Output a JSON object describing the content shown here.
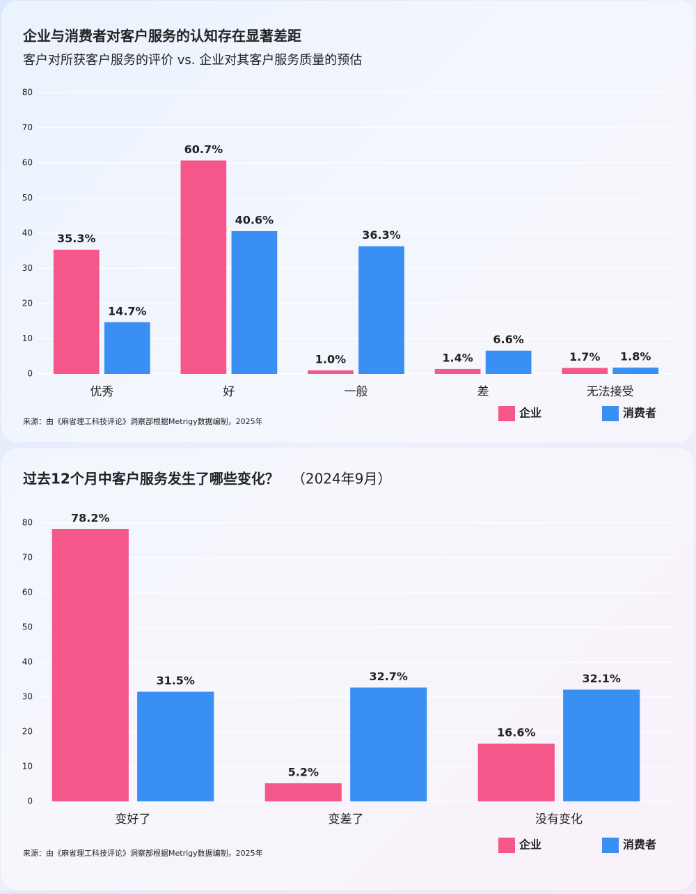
{
  "chart_data": [
    {
      "type": "bar",
      "title": "企业与消费者对客户服务的认知存在显著差距",
      "subtitle": "客户对所获客户服务的评价 vs. 企业对其客户服务质量的预估",
      "categories": [
        "优秀",
        "好",
        "一般",
        "差",
        "无法接受"
      ],
      "series": [
        {
          "name": "企业",
          "color": "#f5578a",
          "values": [
            35.3,
            60.7,
            1.0,
            1.4,
            1.7
          ],
          "value_labels": [
            "35.3%",
            "60.7%",
            "1.0%",
            "1.4%",
            "1.7%"
          ]
        },
        {
          "name": "消费者",
          "color": "#3a8ff5",
          "values": [
            14.7,
            40.6,
            36.3,
            6.6,
            1.8
          ],
          "value_labels": [
            "14.7%",
            "40.6%",
            "36.3%",
            "6.6%",
            "1.8%"
          ]
        }
      ],
      "ylim": [
        0,
        80
      ],
      "yticks": [
        0,
        10,
        20,
        30,
        40,
        50,
        60,
        70,
        80
      ],
      "grid": true,
      "legend": "bottom-right",
      "source": "来源：由《麻省理工科技评论》洞察部根据Metrigy数据编制，2025年"
    },
    {
      "type": "bar",
      "title": "过去12个月中客户服务发生了哪些变化？",
      "subtitle": "（2024年9月）",
      "categories": [
        "变好了",
        "变差了",
        "没有变化"
      ],
      "series": [
        {
          "name": "企业",
          "color": "#f5578a",
          "values": [
            78.2,
            5.2,
            16.6
          ],
          "value_labels": [
            "78.2%",
            "5.2%",
            "16.6%"
          ]
        },
        {
          "name": "消费者",
          "color": "#3a8ff5",
          "values": [
            31.5,
            32.7,
            32.1
          ],
          "value_labels": [
            "31.5%",
            "32.7%",
            "32.1%"
          ]
        }
      ],
      "ylim": [
        0,
        80
      ],
      "yticks": [
        0,
        10,
        20,
        30,
        40,
        50,
        60,
        70,
        80
      ],
      "grid": true,
      "legend": "bottom-right",
      "source": "来源：由《麻省理工科技评论》洞察部根据Metrigy数据编制，2025年"
    }
  ]
}
